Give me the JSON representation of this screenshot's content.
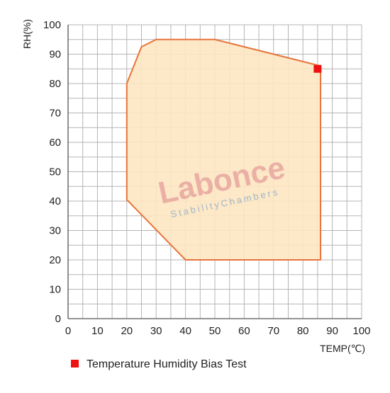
{
  "chart_data": {
    "type": "area",
    "xlabel": "TEMP(℃)",
    "ylabel": "RH(%)",
    "xlim": [
      0,
      100
    ],
    "ylim": [
      0,
      100
    ],
    "xticks": [
      0,
      10,
      20,
      30,
      40,
      50,
      60,
      70,
      80,
      90,
      100
    ],
    "yticks": [
      0,
      10,
      20,
      30,
      40,
      50,
      60,
      70,
      80,
      90,
      100
    ],
    "minor_grid_step": 5,
    "grid": true,
    "region": {
      "fill_color": "#fde5c2",
      "stroke_color": "#e8743b",
      "points": [
        {
          "x": 20,
          "y": 80
        },
        {
          "x": 25,
          "y": 92.5
        },
        {
          "x": 30,
          "y": 95
        },
        {
          "x": 50,
          "y": 95
        },
        {
          "x": 86,
          "y": 86
        },
        {
          "x": 86,
          "y": 20
        },
        {
          "x": 40,
          "y": 20
        },
        {
          "x": 20,
          "y": 40.5
        }
      ]
    },
    "markers": [
      {
        "name": "Temperature Humidity Bias Test",
        "x": 85,
        "y": 85,
        "color": "#ee1111"
      }
    ],
    "legend_position": "bottom-left"
  },
  "watermark": {
    "text": "Labonce",
    "subtext": "StabilityChambers"
  }
}
